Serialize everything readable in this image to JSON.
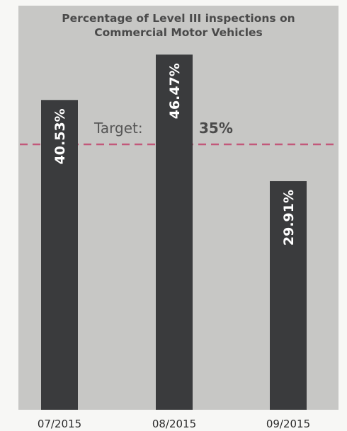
{
  "chart_data": {
    "type": "bar",
    "title": [
      "Percentage of Level III inspections on",
      "Commercial Motor Vehicles"
    ],
    "categories": [
      "07/2015",
      "08/2015",
      "09/2015"
    ],
    "values": [
      40.53,
      46.47,
      29.91
    ],
    "value_labels": [
      "40.53%",
      "46.47%",
      "29.91%"
    ],
    "ylim": [
      0,
      50
    ],
    "grid": false,
    "target": {
      "label": "Target:",
      "value": 35,
      "value_label": "35%",
      "color": "#c2587a"
    },
    "colors": {
      "bar": "#3a3b3d",
      "panel": "#c7c7c5",
      "background": "#f7f7f5"
    }
  }
}
